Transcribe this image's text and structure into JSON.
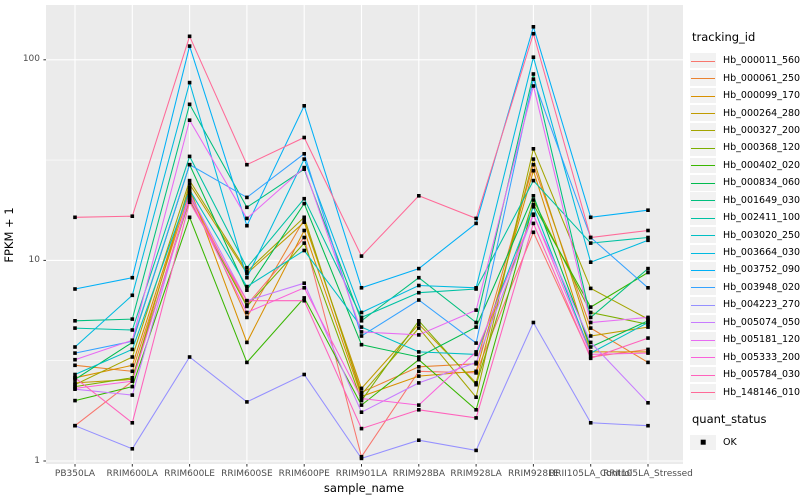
{
  "chart": {
    "x_axis_title": "sample_name",
    "y_axis_title": "FPKM + 1",
    "legend_title": "tracking_id",
    "quant_legend_title": "quant_status",
    "quant_ok_label": "OK",
    "y_ticks": [
      100,
      10,
      1
    ],
    "panel_bg": "#EBEBEB",
    "grid_color": "#FFFFFF",
    "tick_color": "#333333",
    "tick_label_color": "#4D4D4D",
    "point_color": "#000000",
    "legend_key_bg": "#F2F2F2"
  },
  "chart_data": {
    "type": "line",
    "title": "",
    "xlabel": "sample_name",
    "ylabel": "FPKM + 1",
    "y_scale": "log10",
    "ylim": [
      1,
      178
    ],
    "grid": true,
    "legend_position": "right",
    "point_marker": "filled-black-square",
    "quant_status_all_points": "OK",
    "categories": [
      "PB350LA",
      "RRIM600LA",
      "RRIM600LE",
      "RRIM600SE",
      "RRIM600PE",
      "RRIM901LA",
      "RRIM928BA",
      "RRIM928LA",
      "RRIM928LE",
      "RRII105LA_Control",
      "RRII105LA_Stressed"
    ],
    "series": [
      {
        "name": "Hb_000011_560",
        "color": "#F8766D",
        "values": [
          1.5,
          2.5,
          21,
          6.0,
          13.0,
          1.05,
          2.8,
          2.75,
          13.8,
          3.3,
          3.6
        ]
      },
      {
        "name": "Hb_000061_250",
        "color": "#EA8331",
        "values": [
          3.0,
          2.8,
          22,
          5.2,
          16.0,
          2.2,
          2.95,
          3.05,
          30,
          4.6,
          3.1
        ]
      },
      {
        "name": "Hb_000099_170",
        "color": "#D89000",
        "values": [
          2.6,
          3.0,
          23,
          3.9,
          14.1,
          2.1,
          2.65,
          2.8,
          28,
          3.5,
          3.5
        ]
      },
      {
        "name": "Hb_000264_280",
        "color": "#C09B00",
        "values": [
          2.45,
          2.55,
          24,
          8.6,
          15.5,
          2.3,
          4.8,
          2.45,
          32,
          4.2,
          4.65
        ]
      },
      {
        "name": "Hb_000327_200",
        "color": "#A3A500",
        "values": [
          2.4,
          3.3,
          25,
          8.8,
          16.4,
          2.15,
          4.6,
          2.08,
          36,
          7.25,
          5.1
        ]
      },
      {
        "name": "Hb_000368_120",
        "color": "#7CAE00",
        "values": [
          2.35,
          2.6,
          20,
          5.9,
          12.2,
          2.0,
          5.0,
          2.4,
          20,
          5.5,
          4.8
        ]
      },
      {
        "name": "Hb_000402_020",
        "color": "#39B600",
        "values": [
          2.0,
          2.35,
          16.4,
          3.1,
          6.5,
          1.9,
          3.2,
          1.8,
          19,
          5.85,
          8.7
        ]
      },
      {
        "name": "Hb_000834_060",
        "color": "#00BB4E",
        "values": [
          2.55,
          3.9,
          30,
          7.1,
          19.2,
          3.8,
          3.3,
          4.65,
          21,
          3.7,
          5.0
        ]
      },
      {
        "name": "Hb_001649_030",
        "color": "#00BF7D",
        "values": [
          5.0,
          5.1,
          60,
          18.4,
          28.5,
          5.0,
          8.2,
          4.9,
          85,
          5.2,
          9.1
        ]
      },
      {
        "name": "Hb_002411_100",
        "color": "#00C1A3",
        "values": [
          4.6,
          4.5,
          33,
          9.2,
          20.3,
          5.2,
          6.9,
          7.2,
          25,
          12.2,
          13.0
        ]
      },
      {
        "name": "Hb_003020_250",
        "color": "#00BFC4",
        "values": [
          2.7,
          3.6,
          22.5,
          7.4,
          11.2,
          4.65,
          3.5,
          3.4,
          18.5,
          3.45,
          4.9
        ]
      },
      {
        "name": "Hb_003664_030",
        "color": "#00BAE0",
        "values": [
          3.7,
          6.7,
          77,
          8.2,
          32,
          5.5,
          7.5,
          7.3,
          103,
          9.8,
          12.6
        ]
      },
      {
        "name": "Hb_003752_090",
        "color": "#00B0F6",
        "values": [
          7.2,
          8.2,
          117,
          14.9,
          59,
          7.3,
          9.1,
          15.3,
          146,
          16.4,
          17.8
        ]
      },
      {
        "name": "Hb_003948_020",
        "color": "#35A2FF",
        "values": [
          3.45,
          3.95,
          30,
          20.6,
          34,
          4.2,
          6.35,
          3.87,
          80,
          13.0,
          7.3
        ]
      },
      {
        "name": "Hb_004223_270",
        "color": "#9590FF",
        "values": [
          1.5,
          1.15,
          3.3,
          1.97,
          2.7,
          1.03,
          1.27,
          1.13,
          4.9,
          1.55,
          1.5
        ]
      },
      {
        "name": "Hb_005074_050",
        "color": "#C77CFF",
        "values": [
          2.28,
          2.13,
          21.5,
          6.3,
          7.7,
          1.75,
          2.45,
          3.1,
          16.8,
          3.9,
          1.95
        ]
      },
      {
        "name": "Hb_005181_120",
        "color": "#E76BF3",
        "values": [
          3.2,
          4.0,
          50,
          16.2,
          29,
          4.4,
          4.25,
          5.65,
          74,
          4.9,
          5.2
        ]
      },
      {
        "name": "Hb_005333_200",
        "color": "#FA62DB",
        "values": [
          2.3,
          2.5,
          20.5,
          5.5,
          7.3,
          2.05,
          1.9,
          3.5,
          17,
          3.4,
          3.45
        ]
      },
      {
        "name": "Hb_005784_030",
        "color": "#FF62BC",
        "values": [
          2.6,
          1.55,
          19.5,
          6.3,
          6.3,
          1.45,
          1.8,
          1.64,
          15.3,
          3.25,
          4.1
        ]
      },
      {
        "name": "Hb_148146_010",
        "color": "#FF6A98",
        "values": [
          16.4,
          16.6,
          131,
          30,
          41,
          10.5,
          21,
          16.2,
          135,
          13.0,
          14.1
        ]
      }
    ]
  }
}
